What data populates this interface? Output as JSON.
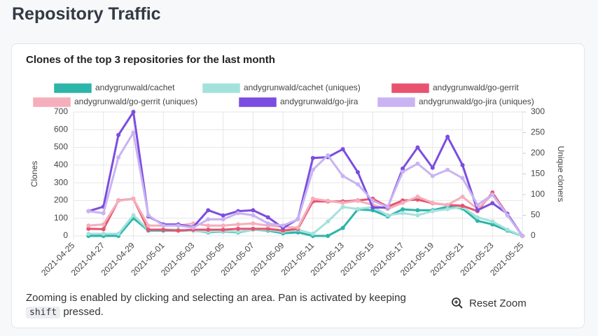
{
  "header": {
    "title": "Repository Traffic"
  },
  "chart_data": {
    "type": "line",
    "title": "Clones of the top 3 repositories for the last month",
    "x": [
      "2021-04-26",
      "2021-04-27",
      "2021-04-28",
      "2021-04-29",
      "2021-04-30",
      "2021-05-01",
      "2021-05-02",
      "2021-05-03",
      "2021-05-04",
      "2021-05-05",
      "2021-05-06",
      "2021-05-07",
      "2021-05-08",
      "2021-05-09",
      "2021-05-10",
      "2021-05-11",
      "2021-05-12",
      "2021-05-13",
      "2021-05-14",
      "2021-05-15",
      "2021-05-16",
      "2021-05-17",
      "2021-05-18",
      "2021-05-19",
      "2021-05-20",
      "2021-05-21",
      "2021-05-22",
      "2021-05-23",
      "2021-05-24",
      "2021-05-25"
    ],
    "xlim": [
      "2021-04-25",
      "2021-05-25"
    ],
    "xticks": [
      "2021-04-25",
      "2021-04-27",
      "2021-04-29",
      "2021-05-01",
      "2021-05-03",
      "2021-05-05",
      "2021-05-07",
      "2021-05-09",
      "2021-05-11",
      "2021-05-13",
      "2021-05-15",
      "2021-05-17",
      "2021-05-19",
      "2021-05-21",
      "2021-05-23",
      "2021-05-25"
    ],
    "ylabel": "Clones",
    "ylim": [
      0,
      700
    ],
    "yticks": [
      0,
      100,
      200,
      300,
      400,
      500,
      600,
      700
    ],
    "y2label": "Unique cloners",
    "y2lim": [
      0,
      300
    ],
    "y2ticks": [
      0,
      50,
      100,
      150,
      200,
      250,
      300
    ],
    "series": [
      {
        "name": "andygrunwald/cachet",
        "color": "#2cb5a9",
        "values": [
          0,
          0,
          0,
          100,
          30,
          30,
          30,
          30,
          20,
          25,
          20,
          35,
          30,
          15,
          20,
          0,
          0,
          45,
          150,
          145,
          110,
          150,
          145,
          145,
          165,
          155,
          85,
          65,
          30,
          0
        ]
      },
      {
        "name": "andygrunwald/cachet (uniques)",
        "color": "#a3e2dc",
        "axis": "y2",
        "values": [
          5,
          5,
          5,
          50,
          15,
          15,
          15,
          12,
          10,
          12,
          10,
          15,
          15,
          10,
          15,
          5,
          35,
          70,
          65,
          70,
          50,
          55,
          50,
          60,
          65,
          70,
          45,
          35,
          15,
          0
        ]
      },
      {
        "name": "andygrunwald/go-gerrit",
        "color": "#e8526f",
        "values": [
          40,
          38,
          200,
          210,
          35,
          35,
          30,
          35,
          35,
          35,
          40,
          40,
          40,
          30,
          40,
          195,
          195,
          195,
          200,
          210,
          165,
          200,
          205,
          185,
          175,
          170,
          140,
          245,
          120,
          0
        ]
      },
      {
        "name": "andygrunwald/go-gerrit (uniques)",
        "color": "#f5aebc",
        "axis": "y2",
        "values": [
          25,
          28,
          85,
          90,
          25,
          25,
          25,
          30,
          25,
          25,
          28,
          30,
          25,
          22,
          20,
          90,
          85,
          80,
          85,
          75,
          65,
          80,
          95,
          80,
          75,
          95,
          65,
          100,
          50,
          0
        ]
      },
      {
        "name": "andygrunwald/go-jira",
        "color": "#7b4de0",
        "values": [
          140,
          165,
          570,
          700,
          110,
          65,
          65,
          50,
          145,
          115,
          140,
          145,
          105,
          45,
          95,
          440,
          445,
          490,
          360,
          160,
          160,
          380,
          500,
          385,
          560,
          400,
          145,
          185,
          125,
          0
        ]
      },
      {
        "name": "andygrunwald/go-jira (uniques)",
        "color": "#c9b3f3",
        "axis": "y2",
        "values": [
          60,
          55,
          190,
          250,
          50,
          25,
          25,
          20,
          40,
          40,
          55,
          50,
          30,
          25,
          40,
          160,
          195,
          145,
          125,
          85,
          70,
          155,
          175,
          145,
          160,
          140,
          75,
          100,
          50,
          0
        ]
      }
    ]
  },
  "footer": {
    "text": "Zooming is enabled by clicking and selecting an area. Pan is activated by keeping",
    "key": "shift",
    "text_end": "pressed.",
    "button": "Reset Zoom"
  }
}
